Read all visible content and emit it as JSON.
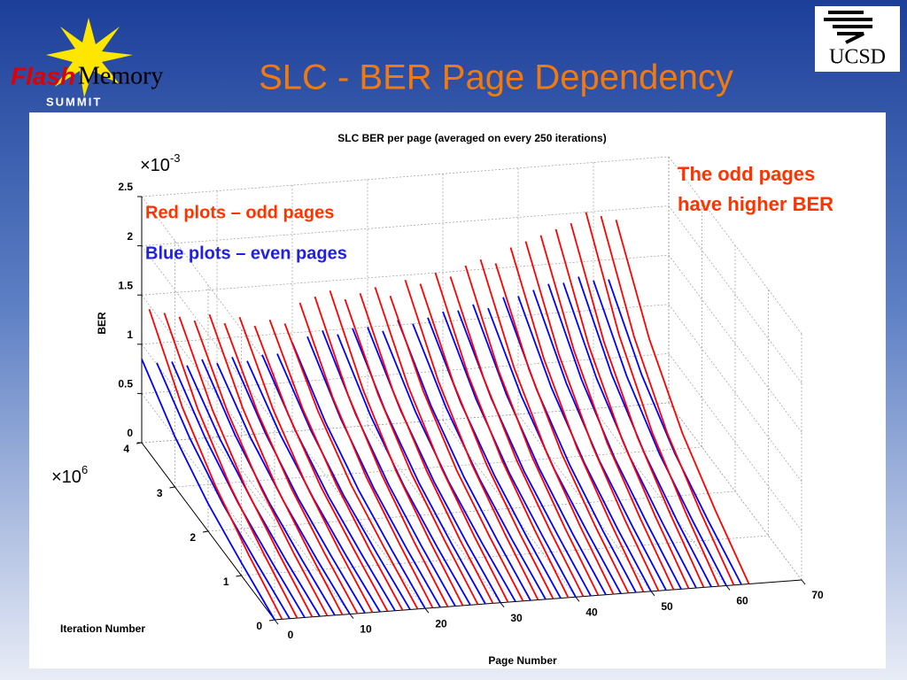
{
  "header": {
    "title": "SLC - BER Page Dependency",
    "logo_left": [
      "Flash",
      "Memory",
      "SUMMIT"
    ],
    "logo_right": "UCSD"
  },
  "chart_data": {
    "type": "waterfall3d",
    "title": "SLC BER per page (averaged on every 250 iterations)",
    "xlabel": "Page Number",
    "ylabel": "BER",
    "zlabel": "Iteration Number",
    "y_scale": {
      "base": "×10",
      "exponent": "-3"
    },
    "z_scale": {
      "base": "×10",
      "exponent": "6"
    },
    "xlim": [
      0,
      70
    ],
    "xticks": [
      0,
      10,
      20,
      30,
      40,
      50,
      60,
      70
    ],
    "ylim": [
      0,
      2.5
    ],
    "yticks": [
      0,
      0.5,
      1,
      1.5,
      2,
      2.5
    ],
    "zlim": [
      0,
      4
    ],
    "zticks": [
      0,
      1,
      2,
      3,
      4
    ],
    "grid": true,
    "annotations": [
      "The odd pages",
      "have higher BER"
    ],
    "iterations": [
      0,
      1,
      2,
      3,
      4
    ],
    "series": [
      {
        "name": "Blue plots – even pages",
        "color": "#0000ff",
        "pages": [
          0,
          2,
          4,
          6,
          8,
          10,
          12,
          14,
          16,
          18,
          20,
          22,
          24,
          26,
          28,
          30,
          32,
          34,
          36,
          38,
          40,
          42,
          44,
          46,
          48,
          50,
          52,
          54,
          56,
          58,
          60,
          62
        ],
        "values": [
          [
            0,
            0.13,
            0.28,
            0.51,
            0.85
          ],
          [
            0,
            0.12,
            0.26,
            0.48,
            0.8
          ],
          [
            0,
            0.12,
            0.26,
            0.48,
            0.8
          ],
          [
            0,
            0.11,
            0.25,
            0.45,
            0.75
          ],
          [
            0,
            0.12,
            0.26,
            0.48,
            0.8
          ],
          [
            0,
            0.11,
            0.25,
            0.45,
            0.75
          ],
          [
            0,
            0.12,
            0.26,
            0.48,
            0.8
          ],
          [
            0,
            0.11,
            0.25,
            0.45,
            0.75
          ],
          [
            0,
            0.12,
            0.26,
            0.48,
            0.8
          ],
          [
            0,
            0.12,
            0.26,
            0.48,
            0.8
          ],
          [
            0,
            0.14,
            0.3,
            0.54,
            0.9
          ],
          [
            0,
            0.14,
            0.31,
            0.57,
            0.95
          ],
          [
            0,
            0.15,
            0.33,
            0.6,
            1.0
          ],
          [
            0,
            0.14,
            0.31,
            0.57,
            0.95
          ],
          [
            0,
            0.15,
            0.33,
            0.6,
            1.0
          ],
          [
            0,
            0.15,
            0.33,
            0.6,
            1.0
          ],
          [
            0,
            0.14,
            0.31,
            0.57,
            0.95
          ],
          [
            0,
            0.16,
            0.35,
            0.63,
            1.05
          ],
          [
            0,
            0.15,
            0.33,
            0.6,
            1.0
          ],
          [
            0,
            0.16,
            0.35,
            0.63,
            1.05
          ],
          [
            0,
            0.17,
            0.36,
            0.66,
            1.1
          ],
          [
            0,
            0.17,
            0.36,
            0.66,
            1.1
          ],
          [
            0,
            0.17,
            0.38,
            0.69,
            1.15
          ],
          [
            0,
            0.17,
            0.36,
            0.66,
            1.1
          ],
          [
            0,
            0.18,
            0.4,
            0.72,
            1.2
          ],
          [
            0,
            0.18,
            0.4,
            0.72,
            1.2
          ],
          [
            0,
            0.19,
            0.41,
            0.75,
            1.25
          ],
          [
            0,
            0.2,
            0.43,
            0.78,
            1.3
          ],
          [
            0,
            0.2,
            0.43,
            0.78,
            1.3
          ],
          [
            0,
            0.2,
            0.45,
            0.81,
            1.35
          ],
          [
            0,
            0.2,
            0.43,
            0.78,
            1.3
          ],
          [
            0,
            0.2,
            0.43,
            0.78,
            1.3
          ]
        ]
      },
      {
        "name": "Red plots  – odd pages",
        "color": "#ff0000",
        "pages": [
          1,
          3,
          5,
          7,
          9,
          11,
          13,
          15,
          17,
          19,
          21,
          23,
          25,
          27,
          29,
          31,
          33,
          35,
          37,
          39,
          41,
          43,
          45,
          47,
          49,
          51,
          53,
          55,
          57,
          59,
          61,
          63
        ],
        "values": [
          [
            0,
            0.2,
            0.45,
            0.8,
            1.35
          ],
          [
            0,
            0.2,
            0.43,
            0.78,
            1.3
          ],
          [
            0,
            0.19,
            0.41,
            0.75,
            1.25
          ],
          [
            0,
            0.18,
            0.4,
            0.72,
            1.2
          ],
          [
            0,
            0.19,
            0.41,
            0.75,
            1.25
          ],
          [
            0,
            0.17,
            0.38,
            0.69,
            1.15
          ],
          [
            0,
            0.18,
            0.4,
            0.72,
            1.2
          ],
          [
            0,
            0.17,
            0.36,
            0.66,
            1.1
          ],
          [
            0,
            0.17,
            0.38,
            0.69,
            1.15
          ],
          [
            0,
            0.17,
            0.36,
            0.66,
            1.1
          ],
          [
            0,
            0.2,
            0.43,
            0.78,
            1.3
          ],
          [
            0,
            0.2,
            0.45,
            0.8,
            1.35
          ],
          [
            0,
            0.21,
            0.46,
            0.84,
            1.4
          ],
          [
            0,
            0.2,
            0.43,
            0.78,
            1.3
          ],
          [
            0,
            0.2,
            0.45,
            0.8,
            1.35
          ],
          [
            0,
            0.21,
            0.46,
            0.84,
            1.4
          ],
          [
            0,
            0.2,
            0.43,
            0.78,
            1.3
          ],
          [
            0,
            0.22,
            0.48,
            0.87,
            1.45
          ],
          [
            0,
            0.21,
            0.46,
            0.84,
            1.4
          ],
          [
            0,
            0.23,
            0.5,
            0.9,
            1.5
          ],
          [
            0,
            0.22,
            0.48,
            0.87,
            1.45
          ],
          [
            0,
            0.23,
            0.51,
            0.93,
            1.55
          ],
          [
            0,
            0.24,
            0.53,
            0.96,
            1.6
          ],
          [
            0,
            0.23,
            0.51,
            0.93,
            1.55
          ],
          [
            0,
            0.26,
            0.56,
            1.02,
            1.7
          ],
          [
            0,
            0.26,
            0.58,
            1.05,
            1.75
          ],
          [
            0,
            0.27,
            0.59,
            1.08,
            1.8
          ],
          [
            0,
            0.28,
            0.61,
            1.11,
            1.85
          ],
          [
            0,
            0.29,
            0.63,
            1.14,
            1.9
          ],
          [
            0,
            0.3,
            0.66,
            1.2,
            2.0
          ],
          [
            0,
            0.29,
            0.64,
            1.17,
            1.95
          ],
          [
            0,
            0.29,
            0.63,
            1.14,
            1.9
          ]
        ]
      }
    ]
  }
}
